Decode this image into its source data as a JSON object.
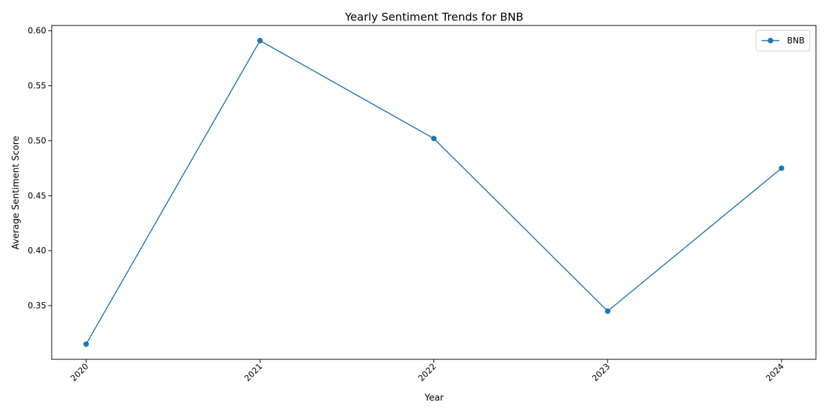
{
  "chart_data": {
    "type": "line",
    "title": "Yearly Sentiment Trends for BNB",
    "xlabel": "Year",
    "ylabel": "Average Sentiment Score",
    "categories": [
      "2020",
      "2021",
      "2022",
      "2023",
      "2024"
    ],
    "series": [
      {
        "name": "BNB",
        "values": [
          0.315,
          0.591,
          0.502,
          0.345,
          0.475
        ],
        "color": "#1f77b4",
        "marker": "circle"
      }
    ],
    "ylim": [
      0.3012,
      0.6048
    ],
    "yticks": [
      0.35,
      0.4,
      0.45,
      0.5,
      0.55,
      0.6
    ],
    "ytick_labels": [
      "0.35",
      "0.40",
      "0.45",
      "0.50",
      "0.55",
      "0.60"
    ],
    "xtick_rotation": 45,
    "grid": false,
    "legend": {
      "placement": "top-right"
    }
  }
}
